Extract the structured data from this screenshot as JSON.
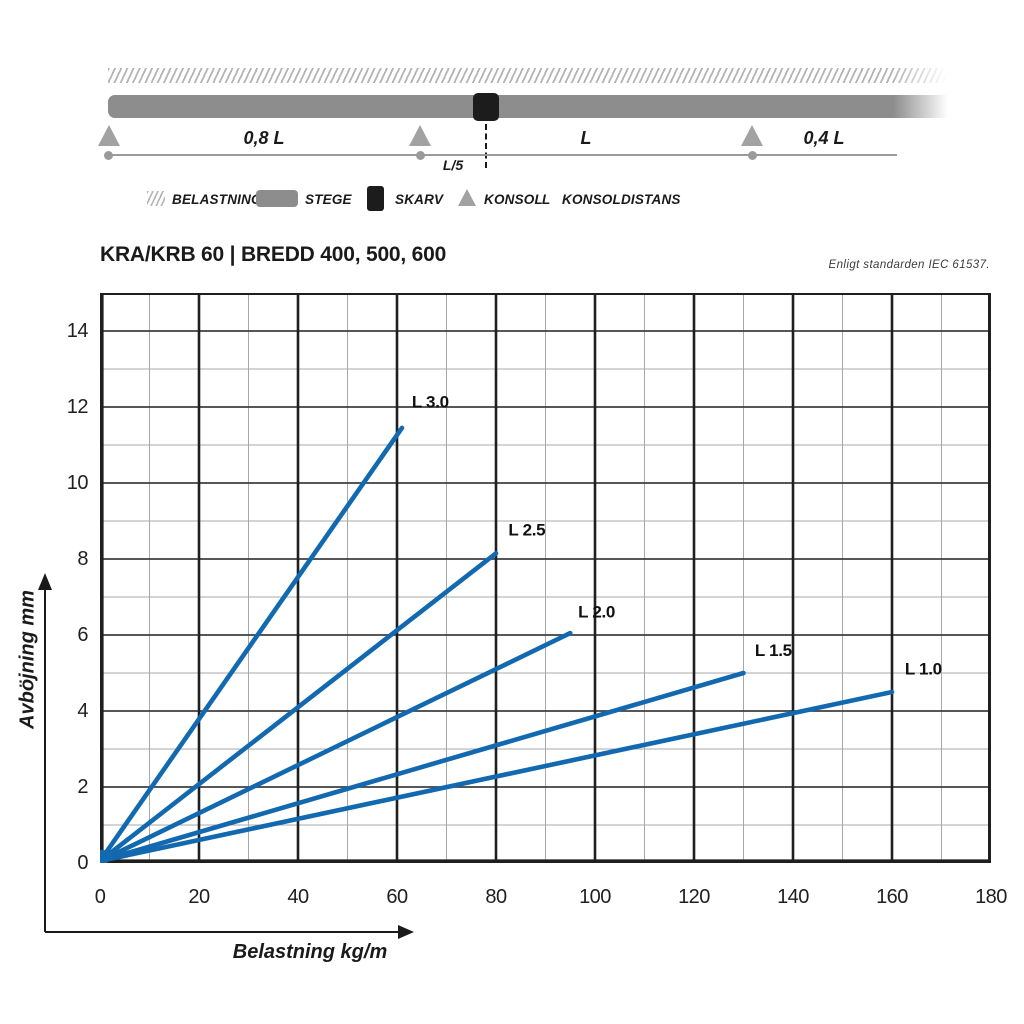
{
  "diagram": {
    "labels": {
      "span_left": "0,8 L",
      "span_mid": "L",
      "span_right": "0,4 L",
      "skarv_offset": "L/5"
    },
    "legend": [
      {
        "icon": "hatch-swatch",
        "label": "BELASTNING"
      },
      {
        "icon": "bar-swatch",
        "label": "STEGE"
      },
      {
        "icon": "square-swatch",
        "label": "SKARV"
      },
      {
        "icon": "triangle-swatch",
        "label": "KONSOL"
      },
      {
        "icon": "letter-symbol",
        "symbol": "L",
        "label": "KONSOLDISTANS"
      }
    ]
  },
  "header": {
    "title": "KRA/KRB 60 | BREDD 400, 500, 600",
    "note": "Enligt standarden IEC 61537."
  },
  "chart_data": {
    "type": "line",
    "title": "KRA/KRB 60 | BREDD 400, 500, 600",
    "xlabel": "Belastning kg/m",
    "ylabel": "Avböjning mm",
    "xlim": [
      0,
      180
    ],
    "ylim": [
      0,
      15
    ],
    "x_ticks": [
      0,
      20,
      40,
      60,
      80,
      100,
      120,
      140,
      160,
      180
    ],
    "y_ticks": [
      0,
      2,
      4,
      6,
      8,
      10,
      12,
      14
    ],
    "x_minor_step": 10,
    "y_minor_step": 1,
    "grid": "on",
    "line_color": "#1269b0",
    "origin_dot": true,
    "series": [
      {
        "name": "L 3.0",
        "points": [
          [
            0,
            0.05
          ],
          [
            61,
            11.45
          ]
        ],
        "label_at": [
          63.0,
          12.15
        ]
      },
      {
        "name": "L 2.5",
        "points": [
          [
            0,
            0.05
          ],
          [
            80,
            8.15
          ]
        ],
        "label_at": [
          82.5,
          8.78
        ]
      },
      {
        "name": "L 2.0",
        "points": [
          [
            0,
            0.05
          ],
          [
            95,
            6.05
          ]
        ],
        "label_at": [
          96.6,
          6.62
        ]
      },
      {
        "name": "L 1.5",
        "points": [
          [
            0,
            0.05
          ],
          [
            130,
            5.0
          ]
        ],
        "label_at": [
          132.3,
          5.6
        ]
      },
      {
        "name": "L 1.0",
        "points": [
          [
            0,
            0.05
          ],
          [
            160,
            4.5
          ]
        ],
        "label_at": [
          162.6,
          5.12
        ]
      }
    ]
  }
}
